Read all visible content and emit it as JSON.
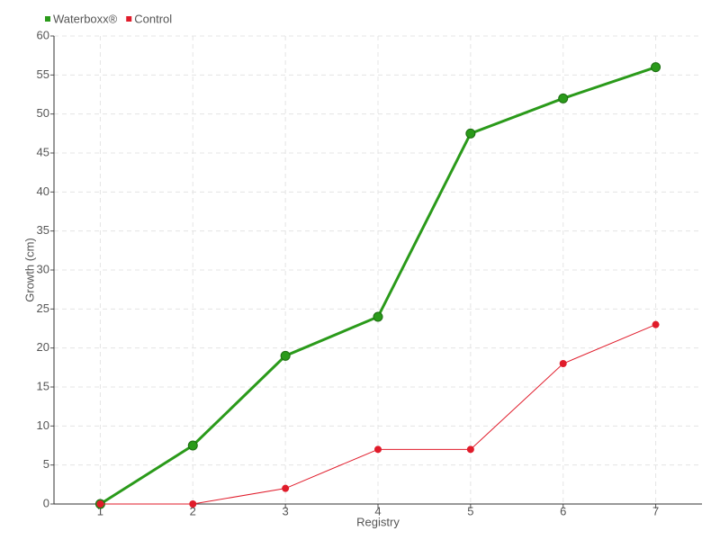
{
  "chart_data": {
    "type": "line",
    "x_label": "Registry",
    "y_label": "Growth (cm)",
    "categories": [
      "1",
      "2",
      "3",
      "4",
      "5",
      "6",
      "7"
    ],
    "series": [
      {
        "name": "Waterboxx®",
        "color": "#2a9a1a",
        "values": [
          0,
          7.5,
          19,
          24,
          47.5,
          52,
          56
        ]
      },
      {
        "name": "Control",
        "color": "#e01b2a",
        "values": [
          0,
          0,
          2,
          7,
          7,
          18,
          23
        ]
      }
    ],
    "ylim": [
      0,
      60
    ],
    "yticks": [
      0,
      5,
      10,
      15,
      20,
      25,
      30,
      35,
      40,
      45,
      50,
      55,
      60
    ],
    "grid": true,
    "legend": "top-left"
  }
}
